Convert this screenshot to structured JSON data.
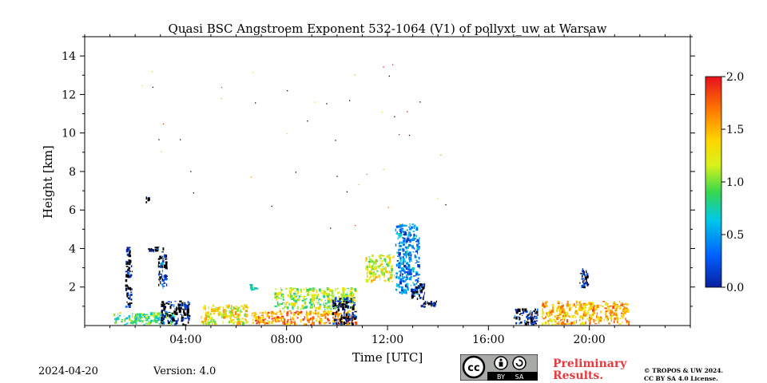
{
  "chart_data": {
    "type": "heatmap",
    "title": "Quasi BSC Angstroem Exponent 532-1064 (V1) of pollyxt_uw at Warsaw",
    "xlabel": "Time [UTC]",
    "ylabel": "Height [km]",
    "xlim": [
      0,
      24
    ],
    "ylim": [
      0,
      15
    ],
    "x_ticks": [
      "04:00",
      "08:00",
      "12:00",
      "16:00",
      "20:00"
    ],
    "y_ticks": [
      "2",
      "4",
      "6",
      "8",
      "10",
      "12",
      "14"
    ],
    "colorbar": {
      "min": 0.0,
      "max": 2.0,
      "ticks": [
        "0.0",
        "0.5",
        "1.0",
        "1.5",
        "2.0"
      ]
    },
    "features": [
      {
        "t": [
          1.6,
          1.9
        ],
        "h": [
          0.9,
          4.1
        ],
        "value": 0.1
      },
      {
        "t": [
          2.4,
          2.6
        ],
        "h": [
          6.3,
          6.7
        ],
        "value": 0.1
      },
      {
        "t": [
          2.5,
          3.2
        ],
        "h": [
          3.8,
          4.1
        ],
        "value": 0.1
      },
      {
        "t": [
          2.9,
          3.3
        ],
        "h": [
          1.9,
          3.7
        ],
        "value": 0.2
      },
      {
        "t": [
          1.1,
          3.6
        ],
        "h": [
          0.0,
          0.7
        ],
        "value": 0.9
      },
      {
        "t": [
          3.0,
          4.2
        ],
        "h": [
          0.0,
          1.3
        ],
        "value": 0.1
      },
      {
        "t": [
          4.6,
          6.5
        ],
        "h": [
          0.0,
          1.1
        ],
        "value": 1.3
      },
      {
        "t": [
          6.5,
          6.9
        ],
        "h": [
          1.8,
          2.2
        ],
        "value": 0.7
      },
      {
        "t": [
          6.6,
          10.8
        ],
        "h": [
          0.0,
          0.8
        ],
        "value": 1.6
      },
      {
        "t": [
          7.5,
          10.8
        ],
        "h": [
          0.8,
          2.0
        ],
        "value": 1.1
      },
      {
        "t": [
          9.8,
          10.8
        ],
        "h": [
          0.0,
          1.5
        ],
        "value": 0.1
      },
      {
        "t": [
          11.1,
          12.3
        ],
        "h": [
          2.2,
          3.7
        ],
        "value": 1.2
      },
      {
        "t": [
          12.3,
          13.3
        ],
        "h": [
          1.6,
          5.3
        ],
        "value": 0.4
      },
      {
        "t": [
          12.9,
          13.5
        ],
        "h": [
          1.3,
          2.2
        ],
        "value": 0.1
      },
      {
        "t": [
          13.3,
          14.0
        ],
        "h": [
          0.9,
          1.3
        ],
        "value": 0.1
      },
      {
        "t": [
          17.0,
          18.0
        ],
        "h": [
          0.0,
          0.9
        ],
        "value": 0.1
      },
      {
        "t": [
          18.1,
          21.6
        ],
        "h": [
          0.0,
          1.3
        ],
        "value": 1.5
      },
      {
        "t": [
          19.6,
          20.0
        ],
        "h": [
          1.9,
          3.0
        ],
        "value": 0.1
      }
    ]
  },
  "footer": {
    "date": "2024-04-20",
    "version": "Version: 4.0",
    "preliminary_line1": "Preliminary",
    "preliminary_line2": "Results.",
    "license_line1": "© TROPOS & UW 2024.",
    "license_line2": "CC BY SA 4.0 License.",
    "badge_cc": "cc",
    "badge_by": "BY",
    "badge_sa": "SA"
  },
  "colors": {
    "missing": "#000000",
    "prelim": "#e8393f",
    "badge_bg": "#a8aaa7"
  }
}
